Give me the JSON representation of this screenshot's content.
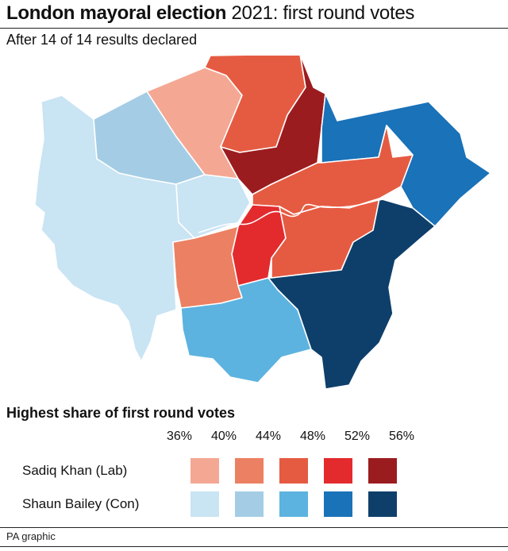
{
  "title": {
    "bold": "London mayoral election",
    "regular": " 2021: first round votes"
  },
  "subtitle": "After 14 of 14 results declared",
  "legend": {
    "title": "Highest share of first round votes",
    "ticks": [
      "36%",
      "40%",
      "44%",
      "48%",
      "52%",
      "56%"
    ],
    "rows": [
      {
        "label": "Sadiq Khan (Lab)",
        "colors": [
          "#f4a893",
          "#ec8062",
          "#e55b42",
          "#e32b2e",
          "#9b1c1f"
        ]
      },
      {
        "label": "Shaun Bailey (Con)",
        "colors": [
          "#c9e4f3",
          "#a4cde5",
          "#5cb3df",
          "#1a72b8",
          "#0e3f6b"
        ]
      }
    ]
  },
  "map": {
    "regions": [
      {
        "name": "region-outer-west",
        "party": "Shaun Bailey (Con)",
        "color": "#c9e4f3"
      },
      {
        "name": "region-north-west",
        "party": "Shaun Bailey (Con)",
        "color": "#a4cde5"
      },
      {
        "name": "region-west-central",
        "party": "Shaun Bailey (Con)",
        "color": "#c9e4f3"
      },
      {
        "name": "region-brent-harrow",
        "party": "Sadiq Khan (Lab)",
        "color": "#f4a893"
      },
      {
        "name": "region-barnet-camden",
        "party": "Sadiq Khan (Lab)",
        "color": "#e55b42"
      },
      {
        "name": "region-north-east",
        "party": "Sadiq Khan (Lab)",
        "color": "#9b1c1f"
      },
      {
        "name": "region-havering-redbridge",
        "party": "Shaun Bailey (Con)",
        "color": "#1a72b8"
      },
      {
        "name": "region-city-east",
        "party": "Sadiq Khan (Lab)",
        "color": "#e55b42"
      },
      {
        "name": "region-lambeth-southwark",
        "party": "Sadiq Khan (Lab)",
        "color": "#e32b2e"
      },
      {
        "name": "region-greenwich-lewisham",
        "party": "Sadiq Khan (Lab)",
        "color": "#e55b42"
      },
      {
        "name": "region-south-west",
        "party": "Sadiq Khan (Lab)",
        "color": "#ec8062"
      },
      {
        "name": "region-croydon-sutton",
        "party": "Shaun Bailey (Con)",
        "color": "#5cb3df"
      },
      {
        "name": "region-bexley-bromley",
        "party": "Shaun Bailey (Con)",
        "color": "#0e3f6b"
      }
    ]
  },
  "credit": "PA graphic"
}
